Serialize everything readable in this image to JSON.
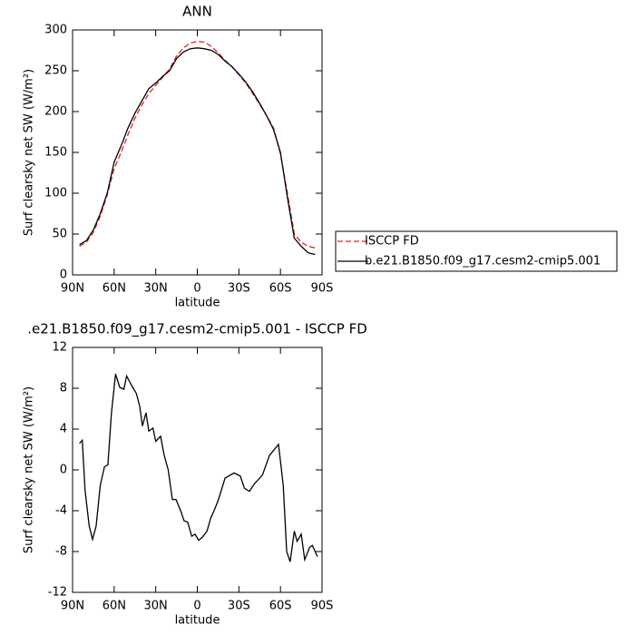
{
  "chart_data": [
    {
      "type": "line",
      "title": "ANN",
      "x_label": "latitude",
      "y_label": "Surf clearsky net SW (W/m²)",
      "x": [
        85,
        80,
        75,
        70,
        65,
        60,
        55,
        50,
        45,
        40,
        35,
        30,
        25,
        20,
        15,
        10,
        5,
        0,
        -5,
        -10,
        -15,
        -20,
        -25,
        -30,
        -35,
        -40,
        -45,
        -50,
        -55,
        -60,
        -65,
        -70,
        -75,
        -80,
        -85
      ],
      "xlim": [
        90,
        -90
      ],
      "xticks": [
        {
          "value": 90,
          "label": "90N"
        },
        {
          "value": 60,
          "label": "60N"
        },
        {
          "value": 30,
          "label": "30N"
        },
        0,
        {
          "value": -30,
          "label": "30S"
        },
        {
          "value": -60,
          "label": "60S"
        },
        {
          "value": -90,
          "label": "90S"
        }
      ],
      "ylim": [
        0,
        300
      ],
      "yticks": [
        0,
        50,
        100,
        150,
        200,
        250,
        300
      ],
      "legend": "right",
      "series": [
        {
          "name": "ISCCP FD",
          "color": "#e8201c",
          "linestyle": "dashed",
          "values": [
            35,
            40,
            52,
            72,
            98,
            130,
            150,
            172,
            192,
            208,
            222,
            232,
            242,
            252,
            268,
            278,
            284,
            286,
            285,
            280,
            272,
            263,
            255,
            245,
            235,
            222,
            209,
            195,
            180,
            148,
            100,
            50,
            40,
            35,
            33
          ]
        },
        {
          "name": "b.e21.B1850.f09_g17.cesm2-cmip5.001",
          "color": "#000000",
          "linestyle": "solid",
          "values": [
            37,
            42,
            55,
            75,
            100,
            138,
            158,
            180,
            198,
            213,
            228,
            235,
            243,
            250,
            265,
            273,
            277,
            278,
            277,
            275,
            270,
            262,
            255,
            246,
            236,
            224,
            210,
            195,
            178,
            150,
            95,
            45,
            35,
            27,
            25
          ]
        }
      ]
    },
    {
      "type": "line",
      "title": ".e21.B1850.f09_g17.cesm2-cmip5.001 - ISCCP FD",
      "x_label": "latitude",
      "y_label": "Surf clearsky net SW (W/m²)",
      "x": [
        85,
        83,
        81,
        78,
        75.6,
        73,
        70,
        67,
        64.5,
        62,
        59,
        56,
        53,
        51,
        47.5,
        44,
        41.5,
        39.6,
        37,
        35,
        32,
        30,
        26.5,
        24,
        21,
        18,
        15.4,
        12,
        9.5,
        7,
        4,
        1.6,
        -1,
        -3.6,
        -7,
        -9.5,
        -12.7,
        -15,
        -18,
        -20,
        -26.5,
        -31,
        -34,
        -37.6,
        -41,
        -47,
        -52,
        -58.6,
        -62,
        -64.5,
        -67,
        -70,
        -72,
        -75,
        -77.5,
        -81,
        -83,
        -86.7
      ],
      "values": [
        2.6,
        2.9,
        -2,
        -5.5,
        -6.8,
        -5.5,
        -1.5,
        0.3,
        0.5,
        5.5,
        9.4,
        8.1,
        7.9,
        9.2,
        8.3,
        7.5,
        6.2,
        4.3,
        5.6,
        3.8,
        4.1,
        2.8,
        3.3,
        1.5,
        0,
        -2.9,
        -2.9,
        -4,
        -5,
        -5.1,
        -6.5,
        -6.3,
        -6.9,
        -6.6,
        -6,
        -4.8,
        -3.8,
        -3,
        -1.7,
        -0.8,
        -0.3,
        -0.6,
        -1.8,
        -2.1,
        -1.4,
        -0.5,
        1.4,
        2.5,
        -1.5,
        -8,
        -9,
        -6,
        -7,
        -6.3,
        -8.8,
        -7.6,
        -7.4,
        -8.5
      ],
      "color": "#000000",
      "xlim": [
        90,
        -90
      ],
      "xticks": [
        {
          "value": 90,
          "label": "90N"
        },
        {
          "value": 60,
          "label": "60N"
        },
        {
          "value": 30,
          "label": "30N"
        },
        0,
        {
          "value": -30,
          "label": "30S"
        },
        {
          "value": -60,
          "label": "60S"
        },
        {
          "value": -90,
          "label": "90S"
        }
      ],
      "ylim": [
        -12,
        12
      ],
      "yticks": [
        -12,
        -8,
        -4,
        0,
        4,
        8,
        12
      ]
    }
  ]
}
